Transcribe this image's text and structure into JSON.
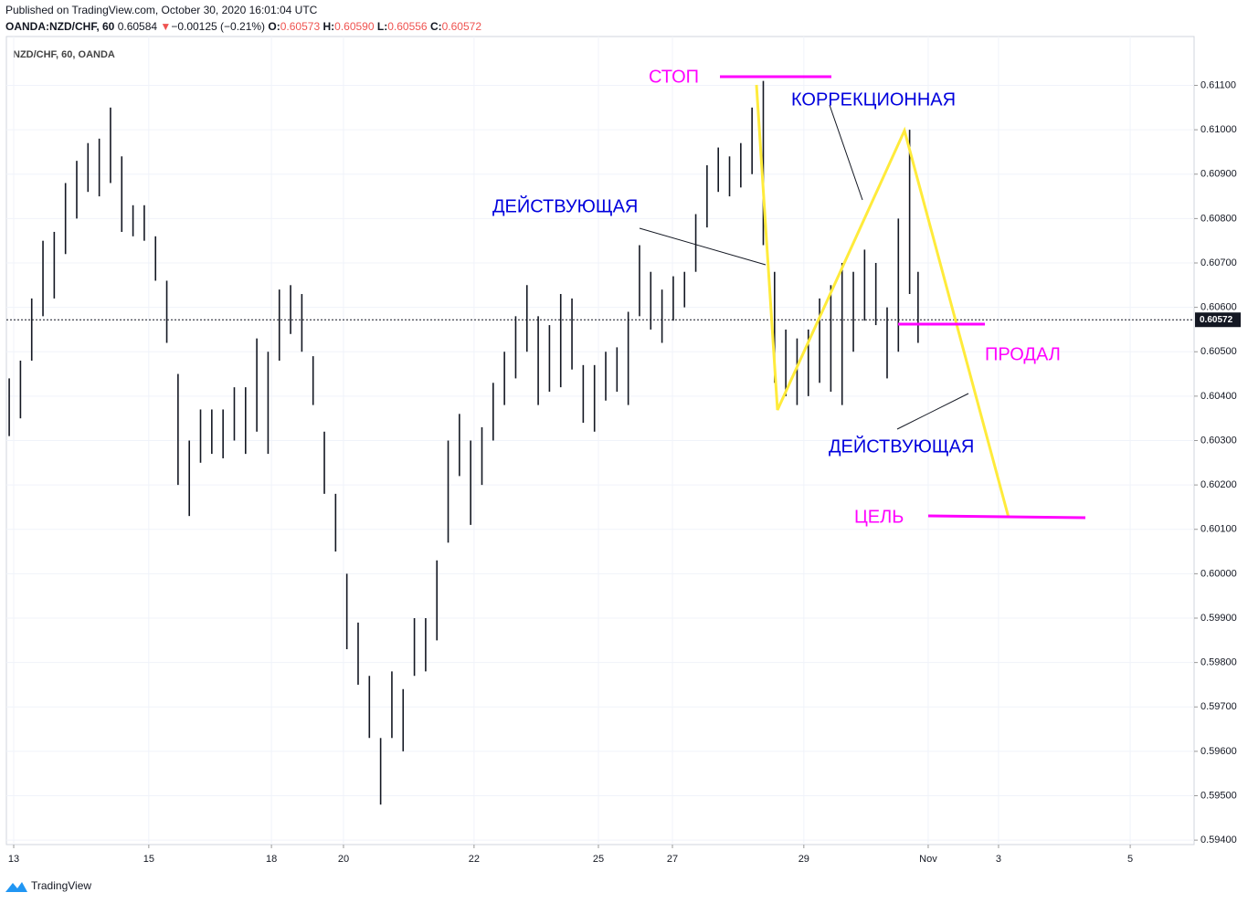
{
  "header": {
    "published": "Published on TradingView.com, October 30, 2020 16:01:04 UTC",
    "symbol": "OANDA:NZD/CHF, 60",
    "price": "0.60584",
    "arrow": "▼",
    "change": "−0.00125 (−0.21%)",
    "o_label": "O:",
    "o_value": "0.60573",
    "h_label": "H:",
    "h_value": "0.60590",
    "l_label": "L:",
    "l_value": "0.60556",
    "c_label": "C:",
    "c_value": "0.60572"
  },
  "footer": {
    "brand": "TradingView"
  },
  "annotations": {
    "stop": "СТОП",
    "correction": "КОРРЕКЦИОННАЯ",
    "active1": "ДЕЙСТВУЮЩАЯ",
    "sold": "ПРОДАЛ",
    "active2": "ДЕЙСТВУЮЩАЯ",
    "target": "ЦЕЛЬ"
  },
  "chart_data": {
    "type": "ohlc",
    "title": "NZD/CHF, 60, OANDA",
    "color": "#131722",
    "grid": true,
    "x": [
      1,
      5,
      9,
      13,
      17,
      21,
      25,
      29,
      33,
      37,
      41,
      45,
      49,
      53,
      57,
      61,
      65,
      69,
      73,
      77,
      81,
      85,
      89,
      93,
      97,
      101,
      105,
      109,
      113,
      117,
      121,
      125,
      129,
      133,
      137,
      141,
      145,
      149,
      153,
      157,
      161,
      165,
      169,
      173,
      177,
      181,
      185,
      189,
      193,
      197,
      201,
      205,
      209,
      213,
      217,
      221,
      225,
      229,
      233,
      237,
      241,
      245,
      249,
      253,
      257,
      261,
      265,
      269,
      273,
      277,
      281,
      285,
      289,
      293,
      297,
      301,
      305,
      309,
      313,
      317,
      321,
      324
    ],
    "high": [
      0.6044,
      0.6048,
      0.6062,
      0.6075,
      0.6077,
      0.6088,
      0.6093,
      0.6097,
      0.6098,
      0.6105,
      0.6094,
      0.6083,
      0.6083,
      0.6076,
      0.6066,
      0.6045,
      0.603,
      0.6037,
      0.6037,
      0.6037,
      0.6042,
      0.6042,
      0.6053,
      0.605,
      0.6064,
      0.6065,
      0.6063,
      0.6049,
      0.6032,
      0.6018,
      0.6,
      0.5989,
      0.5977,
      0.5963,
      0.5978,
      0.5974,
      0.599,
      0.599,
      0.6003,
      0.603,
      0.6036,
      0.603,
      0.6033,
      0.6043,
      0.605,
      0.6058,
      0.6065,
      0.6058,
      0.6056,
      0.6063,
      0.6062,
      0.6047,
      0.6047,
      0.605,
      0.6051,
      0.6059,
      0.6074,
      0.6068,
      0.6064,
      0.6067,
      0.6068,
      0.6081,
      0.6092,
      0.6096,
      0.6094,
      0.6097,
      0.6105,
      0.6111,
      0.6068,
      0.6055,
      0.6053,
      0.6055,
      0.6062,
      0.6065,
      0.607,
      0.6068,
      0.6073,
      0.607,
      0.606,
      0.608,
      0.61,
      0.6068
    ],
    "low": [
      0.6031,
      0.6035,
      0.6048,
      0.6058,
      0.6062,
      0.6072,
      0.608,
      0.6086,
      0.6085,
      0.6088,
      0.6077,
      0.6076,
      0.6075,
      0.6066,
      0.6052,
      0.602,
      0.6013,
      0.6025,
      0.6027,
      0.6026,
      0.603,
      0.6027,
      0.6032,
      0.6027,
      0.6048,
      0.6054,
      0.605,
      0.6038,
      0.6018,
      0.6005,
      0.5983,
      0.5975,
      0.5963,
      0.5948,
      0.5963,
      0.596,
      0.5977,
      0.5978,
      0.5985,
      0.6007,
      0.6022,
      0.6011,
      0.602,
      0.603,
      0.6038,
      0.6044,
      0.605,
      0.6038,
      0.6041,
      0.6042,
      0.6046,
      0.6034,
      0.6032,
      0.6039,
      0.6041,
      0.6038,
      0.6058,
      0.6055,
      0.6052,
      0.6057,
      0.606,
      0.6068,
      0.6078,
      0.6086,
      0.6085,
      0.6087,
      0.609,
      0.6074,
      0.6043,
      0.604,
      0.6038,
      0.604,
      0.6043,
      0.6041,
      0.6038,
      0.605,
      0.6057,
      0.6056,
      0.6044,
      0.605,
      0.6063,
      0.6052
    ],
    "last_price": 0.60572,
    "xlim": [
      0,
      422.1
    ],
    "ylim": [
      0.5939,
      0.6121
    ],
    "xticks": [
      {
        "value": 2.6,
        "label": "13"
      },
      {
        "value": 50.6,
        "label": "15"
      },
      {
        "value": 94.2,
        "label": "18"
      },
      {
        "value": 119.8,
        "label": "20"
      },
      {
        "value": 166.2,
        "label": "22"
      },
      {
        "value": 210.4,
        "label": "25"
      },
      {
        "value": 236.7,
        "label": "27"
      },
      {
        "value": 283.4,
        "label": "29"
      },
      {
        "value": 327.6,
        "label": "Nov"
      },
      {
        "value": 352.6,
        "label": "3"
      },
      {
        "value": 399.4,
        "label": "5"
      }
    ],
    "yticks": [
      {
        "value": 0.594,
        "label": "0.59400"
      },
      {
        "value": 0.595,
        "label": "0.59500"
      },
      {
        "value": 0.596,
        "label": "0.59600"
      },
      {
        "value": 0.597,
        "label": "0.59700"
      },
      {
        "value": 0.598,
        "label": "0.59800"
      },
      {
        "value": 0.599,
        "label": "0.59900"
      },
      {
        "value": 0.6,
        "label": "0.60000"
      },
      {
        "value": 0.601,
        "label": "0.60100"
      },
      {
        "value": 0.602,
        "label": "0.60200"
      },
      {
        "value": 0.603,
        "label": "0.60300"
      },
      {
        "value": 0.604,
        "label": "0.60400"
      },
      {
        "value": 0.605,
        "label": "0.60500"
      },
      {
        "value": 0.606,
        "label": "0.60600"
      },
      {
        "value": 0.607,
        "label": "0.60700"
      },
      {
        "value": 0.608,
        "label": "0.60800"
      },
      {
        "value": 0.609,
        "label": "0.60900"
      },
      {
        "value": 0.61,
        "label": "0.61000"
      },
      {
        "value": 0.611,
        "label": "0.61100"
      }
    ]
  }
}
